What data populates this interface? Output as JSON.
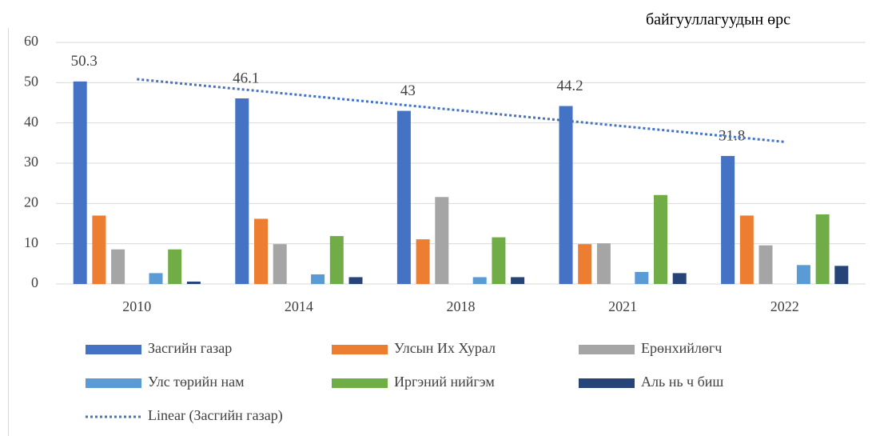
{
  "chart_data": {
    "type": "bar",
    "annotation": "байгууллагуудын өрс",
    "categories": [
      "2010",
      "2014",
      "2018",
      "2021",
      "2022"
    ],
    "series": [
      {
        "name": "Засгийн газар",
        "color": "#4472c4",
        "values": [
          50.3,
          46.1,
          43,
          44.2,
          31.8
        ],
        "value_labels": [
          "50.3",
          "46.1",
          "43",
          "44.2",
          "31.8"
        ]
      },
      {
        "name": "Улсын Их Хурал",
        "color": "#ed7d31",
        "values": [
          17,
          16.2,
          11.1,
          9.9,
          17
        ]
      },
      {
        "name": "Ерөнхийлөгч",
        "color": "#a5a5a5",
        "values": [
          8.6,
          9.9,
          21.6,
          10.1,
          9.6
        ]
      },
      {
        "name": "Улс төрийн нам",
        "color": "#5b9bd5",
        "values": [
          2.7,
          2.4,
          1.7,
          3.0,
          4.7
        ]
      },
      {
        "name": "Иргэний нийгэм",
        "color": "#70ad47",
        "values": [
          8.6,
          11.9,
          11.6,
          22.1,
          17.3
        ]
      },
      {
        "name": "Аль нь ч биш",
        "color": "#264478",
        "values": [
          0.6,
          1.7,
          1.7,
          2.7,
          4.5
        ]
      }
    ],
    "trendline": {
      "name": "Linear (Засгийн газар)",
      "color": "#4472c4",
      "series": 0
    },
    "ylim": [
      0,
      60
    ],
    "yticks": [
      0,
      10,
      20,
      30,
      40,
      50,
      60
    ],
    "grid": true,
    "legend": "bottom"
  }
}
